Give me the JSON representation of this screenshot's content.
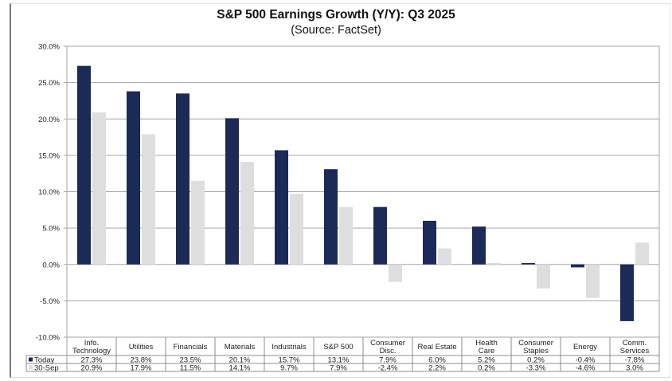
{
  "chart_data": {
    "type": "bar",
    "title": "S&P 500 Earnings Growth (Y/Y): Q3 2025",
    "subtitle": "(Source: FactSet)",
    "xlabel": "",
    "ylabel": "",
    "ylim": [
      -10,
      30
    ],
    "y_ticks": [
      30,
      25,
      20,
      15,
      10,
      5,
      0,
      -5,
      -10
    ],
    "y_tick_labels": [
      "30.0%",
      "25.0%",
      "20.0%",
      "15.0%",
      "10.0%",
      "5.0%",
      "0.0%",
      "-5.0%",
      "-10.0%"
    ],
    "grid": true,
    "legend_placement": "data-table-bottom",
    "categories": [
      [
        "Info.",
        "Technology"
      ],
      [
        "Utilities"
      ],
      [
        "Financials"
      ],
      [
        "Materials"
      ],
      [
        "Industrials"
      ],
      [
        "S&P 500"
      ],
      [
        "Consumer",
        "Disc."
      ],
      [
        "Real Estate"
      ],
      [
        "Health",
        "Care"
      ],
      [
        "Consumer",
        "Staples"
      ],
      [
        "Energy"
      ],
      [
        "Comm.",
        "Services"
      ]
    ],
    "series": [
      {
        "name": "Today",
        "color": "#1b2a56",
        "values": [
          27.3,
          23.8,
          23.5,
          20.1,
          15.7,
          13.1,
          7.9,
          6.0,
          5.2,
          0.2,
          -0.4,
          -7.8
        ],
        "labels": [
          "27.3%",
          "23.8%",
          "23.5%",
          "20.1%",
          "15.7%",
          "13.1%",
          "7.9%",
          "6.0%",
          "5.2%",
          "0.2%",
          "-0.4%",
          "-7.8%"
        ]
      },
      {
        "name": "30-Sep",
        "color": "#dedede",
        "values": [
          20.9,
          17.9,
          11.5,
          14.1,
          9.7,
          7.9,
          -2.4,
          2.2,
          0.2,
          -3.3,
          -4.6,
          3.0
        ],
        "labels": [
          "20.9%",
          "17.9%",
          "11.5%",
          "14.1%",
          "9.7%",
          "7.9%",
          "-2.4%",
          "2.2%",
          "0.2%",
          "-3.3%",
          "-4.6%",
          "3.0%"
        ]
      }
    ]
  },
  "colors": {
    "grid": "#a6a6a6",
    "table_border": "#8c8c8c",
    "frame": "#7a7a7a"
  }
}
